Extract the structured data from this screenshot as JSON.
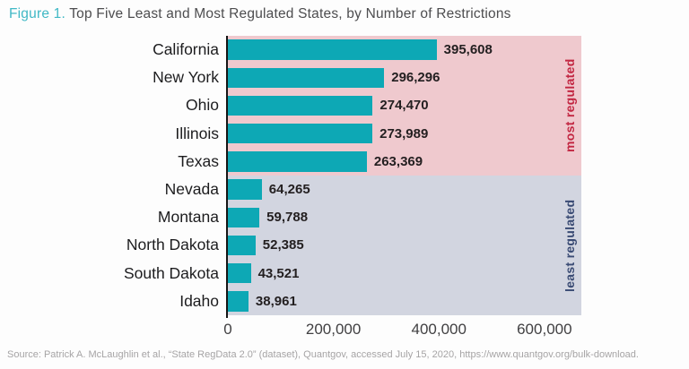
{
  "figure": {
    "label": "Figure 1.",
    "title": " Top Five Least and Most Regulated States, by Number of Restrictions"
  },
  "chart_data": {
    "type": "bar",
    "orientation": "horizontal",
    "title": "Top Five Least and Most Regulated States, by Number of Restrictions",
    "categories": [
      "California",
      "New York",
      "Ohio",
      "Illinois",
      "Texas",
      "Nevada",
      "Montana",
      "North Dakota",
      "South Dakota",
      "Idaho"
    ],
    "values": [
      395608,
      296296,
      274470,
      273989,
      263369,
      64265,
      59788,
      52385,
      43521,
      38961
    ],
    "value_labels": [
      "395,608",
      "296,296",
      "274,470",
      "273,989",
      "263,369",
      "64,265",
      "59,788",
      "52,385",
      "43,521",
      "38,961"
    ],
    "groups": [
      {
        "name": "most regulated",
        "first_index": 0,
        "last_index": 4,
        "band_color": "#efc9ce",
        "label_color": "#c22742"
      },
      {
        "name": "least regulated",
        "first_index": 5,
        "last_index": 9,
        "band_color": "#d2d5e0",
        "label_color": "#3a4b74"
      }
    ],
    "bar_color": "#0da8b5",
    "xlabel": "",
    "ylabel": "",
    "xtick_labels": [
      "0",
      "200,000",
      "400,000",
      "600,000"
    ],
    "xtick_values": [
      0,
      200000,
      400000,
      600000
    ],
    "xlim": [
      0,
      670000
    ],
    "grid": false,
    "legend": "none",
    "data_labels": true
  },
  "source_note": "Source: Patrick A. McLaughlin et al., “State RegData 2.0” (dataset), Quantgov, accessed July 15, 2020, https://www.quantgov.org/bulk-download."
}
